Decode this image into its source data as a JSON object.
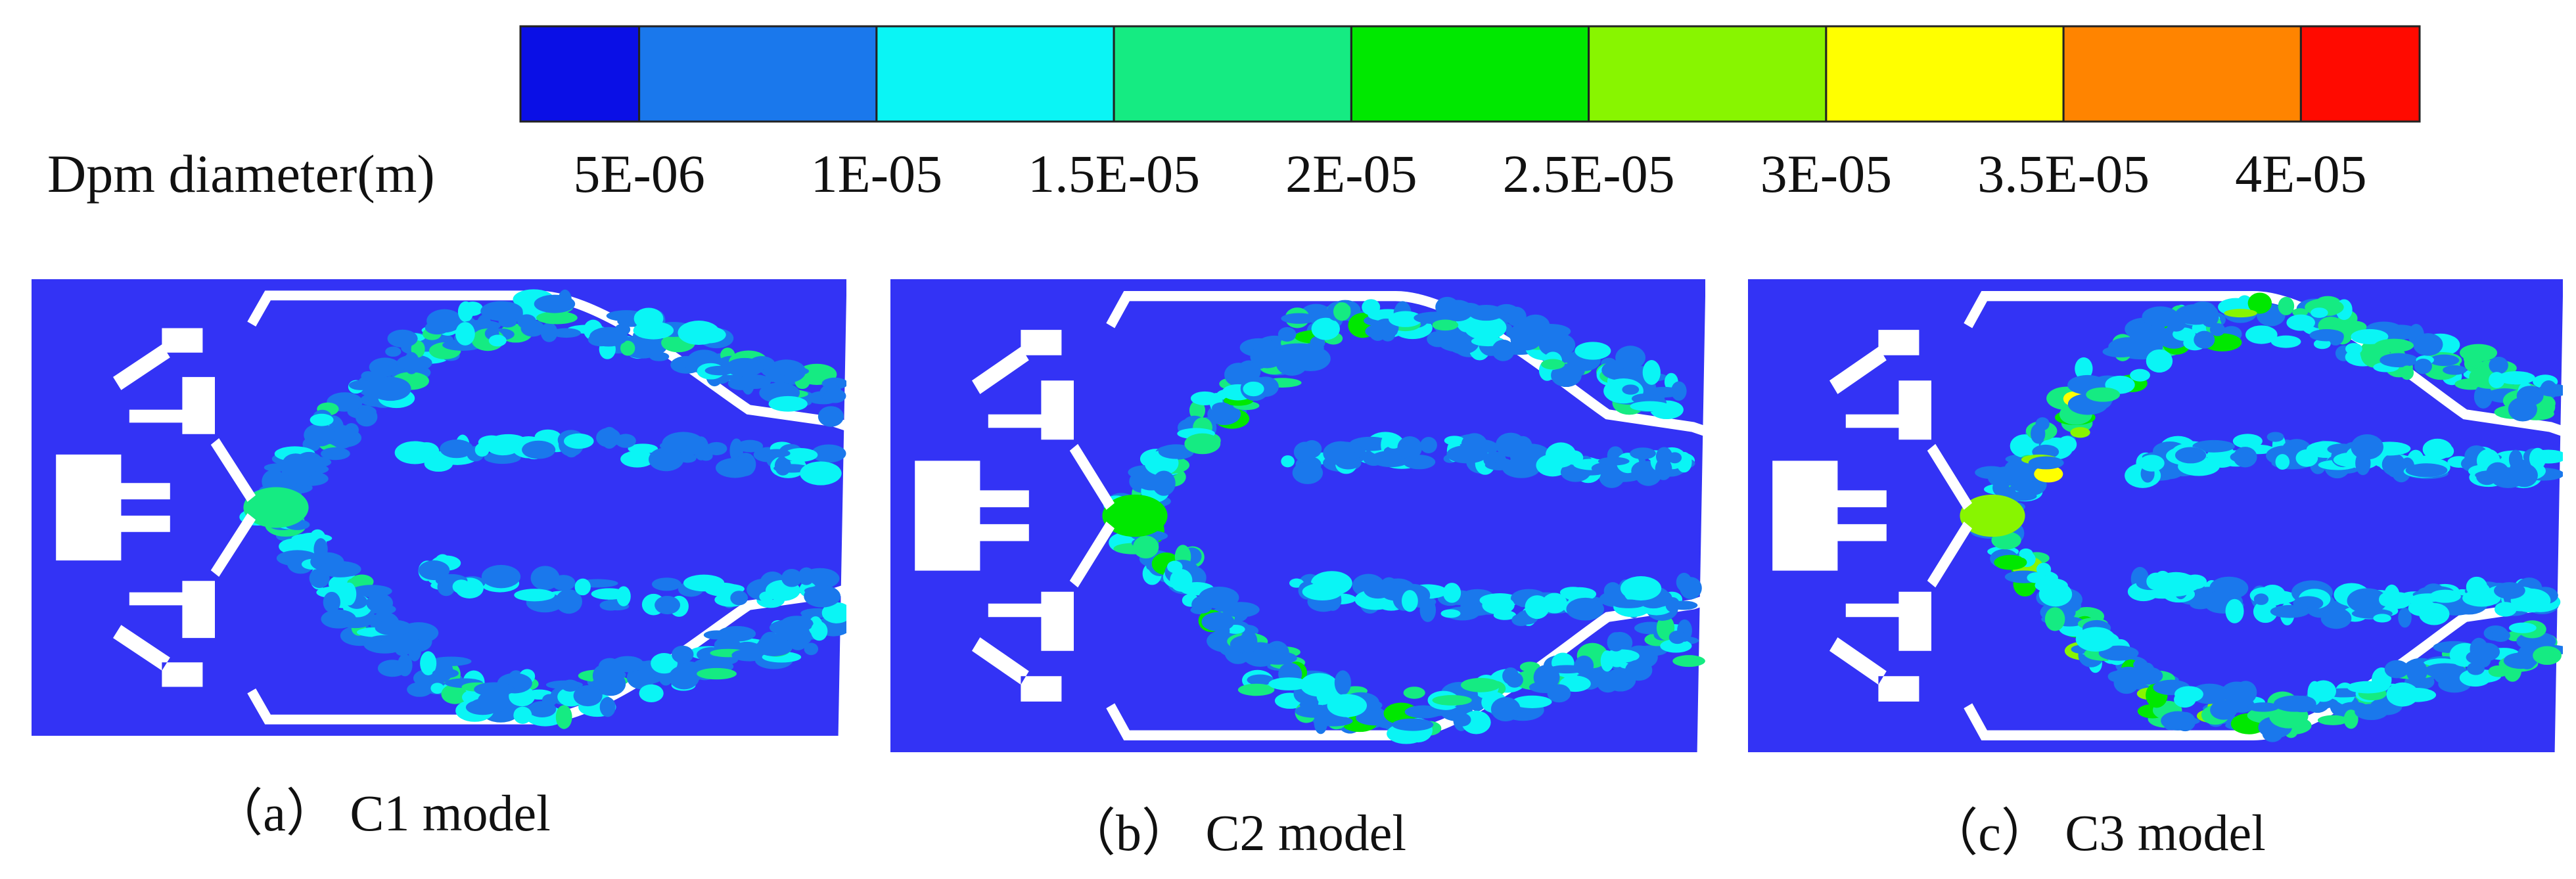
{
  "chart_data": {
    "type": "heatmap",
    "colorbar": {
      "title": "Dpm diameter(m)",
      "colors": [
        "#0a0fe6",
        "#1a78ec",
        "#0af5f5",
        "#15eb82",
        "#00e800",
        "#88f500",
        "#ffff00",
        "#ff8400",
        "#ff0a00"
      ],
      "tick_labels": [
        "5E-06",
        "1E-05",
        "1.5E-05",
        "2E-05",
        "2.5E-05",
        "3E-05",
        "3.5E-05",
        "4E-05"
      ],
      "tick_values": [
        5e-06,
        1e-05,
        1.5e-05,
        2e-05,
        2.5e-05,
        3e-05,
        3.5e-05,
        4e-05
      ]
    },
    "panels": [
      {
        "caption": "（a） C1 model",
        "intensity": 1
      },
      {
        "caption": "（b） C2 model",
        "intensity": 2
      },
      {
        "caption": "（c） C3 model",
        "intensity": 3
      }
    ],
    "colors": {
      "background_field": "#3333f5",
      "geometry": "#ffffff"
    }
  }
}
